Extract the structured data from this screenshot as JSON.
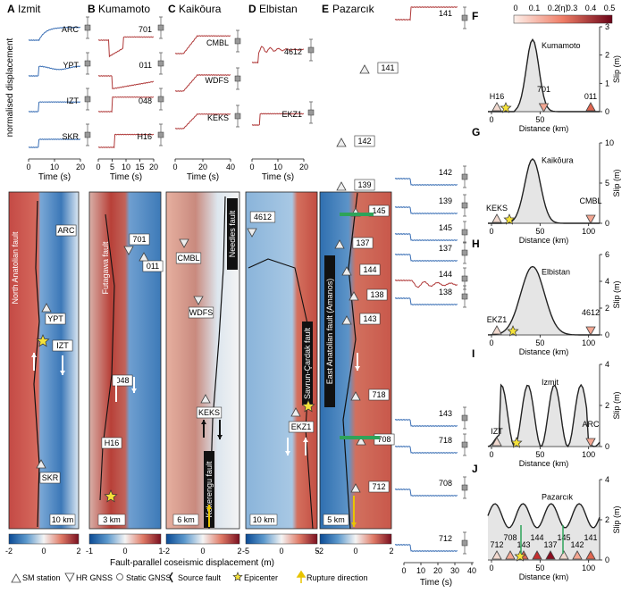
{
  "panels": [
    {
      "letter": "A",
      "title": "Izmit",
      "sts": [
        "ARC",
        "YPT",
        "IZT",
        "SKR"
      ],
      "color": "#3a6fb5"
    },
    {
      "letter": "B",
      "title": "Kumamoto",
      "sts": [
        "701",
        "011",
        "048",
        "H16"
      ],
      "color": "#b03a3a"
    },
    {
      "letter": "C",
      "title": "Kaikōura",
      "sts": [
        "CMBL",
        "WDFS",
        "KEKS"
      ],
      "color": "#b03a3a"
    },
    {
      "letter": "D",
      "title": "Elbistan",
      "sts": [
        "4612",
        "EKZ1"
      ],
      "color": "#b03a3a"
    },
    {
      "letter": "E",
      "title": "Pazarcık",
      "sts": [],
      "color": ""
    }
  ],
  "wave_axis": {
    "ylabel": "normalised displacement",
    "xlabel": "Time (s)",
    "ticks_a": [
      "0",
      "10",
      "20"
    ],
    "ticks_b": [
      "0",
      "5",
      "10",
      "15",
      "20"
    ],
    "ticks_c": [
      "0",
      "20",
      "40"
    ],
    "ticks_d": [
      "0",
      "10",
      "20"
    ],
    "ticks_e": [
      "0",
      "10",
      "20",
      "30",
      "40"
    ]
  },
  "map_labels": {
    "A": {
      "fault": "North Anatolian fault",
      "stations": [
        "ARC",
        "YPT",
        "IZT",
        "SKR"
      ],
      "scale": "10 km"
    },
    "B": {
      "fault": "Futagawa fault",
      "stations": [
        "701",
        "011",
        "048",
        "H16"
      ],
      "scale": "3 km"
    },
    "C": {
      "fault": "Needles fault",
      "fault2": "Kekerengu fault",
      "stations": [
        "CMBL",
        "WDFS",
        "KEKS"
      ],
      "scale": "6 km"
    },
    "D": {
      "fault": "Savrun-Çardak fault",
      "stations": [
        "4612",
        "EKZ1"
      ],
      "scale": "10 km"
    },
    "E": {
      "fault": "East Anatolian fault (Amanos)",
      "stations": [
        "141",
        "142",
        "139",
        "145",
        "137",
        "144",
        "138",
        "143",
        "718",
        "708",
        "712"
      ],
      "scale": "5 km"
    }
  },
  "pazarcik_traces": [
    "141",
    "142",
    "139",
    "145",
    "137",
    "144",
    "138",
    "143",
    "718",
    "708",
    "712"
  ],
  "colorbars": {
    "label": "Fault-parallel coseismic displacement (m)",
    "a": [
      "-2",
      "0",
      "2"
    ],
    "b": [
      "-1",
      "0",
      "1"
    ],
    "c": [
      "-2",
      "0",
      "2"
    ],
    "d": [
      "-5",
      "0",
      "5"
    ],
    "e": [
      "-2",
      "0",
      "2"
    ]
  },
  "legend": [
    "SM station",
    "HR GNSS",
    "Static GNSS",
    "Source fault",
    "Epicenter",
    "Rupture direction"
  ],
  "eta_bar": {
    "label": "⟨η⟩",
    "ticks": [
      "0",
      "0.1",
      "0.2",
      "0.3",
      "0.4",
      "0.5"
    ]
  },
  "slip": [
    {
      "letter": "F",
      "name": "Kumamoto",
      "ylabel": "Slip (m)",
      "xlabel": "Distance (km)",
      "yt": [
        "0",
        "1",
        "2",
        "3"
      ],
      "xt": [
        "0",
        "50"
      ],
      "st": [
        "H16",
        "701",
        "011"
      ]
    },
    {
      "letter": "G",
      "name": "Kaikōura",
      "ylabel": "Slip (m)",
      "xlabel": "Distance (km)",
      "yt": [
        "0",
        "5",
        "10"
      ],
      "xt": [
        "0",
        "50",
        "100"
      ],
      "st": [
        "KEKS",
        "CMBL"
      ]
    },
    {
      "letter": "H",
      "name": "Elbistan",
      "ylabel": "Slip (m)",
      "xlabel": "Distance (km)",
      "yt": [
        "0",
        "2",
        "4",
        "6"
      ],
      "xt": [
        "0",
        "50",
        "100"
      ],
      "st": [
        "EKZ1",
        "4612"
      ]
    },
    {
      "letter": "I",
      "name": "Izmit",
      "ylabel": "Slip (m)",
      "xlabel": "Distance (km)",
      "yt": [
        "0",
        "2",
        "4"
      ],
      "xt": [
        "0",
        "50",
        "100"
      ],
      "st": [
        "IZT",
        "ARC"
      ]
    },
    {
      "letter": "J",
      "name": "Pazarcık",
      "ylabel": "Slip (m)",
      "xlabel": "Distance (km)",
      "yt": [
        "0",
        "2",
        "4"
      ],
      "xt": [
        "0",
        "50",
        "100"
      ],
      "st": [
        "712",
        "708",
        "143",
        "144",
        "137",
        "145",
        "142",
        "141"
      ]
    }
  ],
  "colors": {
    "blue": "#3a6fb5",
    "red": "#b03a3a",
    "star": "#f5e23a",
    "gold": "#e8c400"
  }
}
